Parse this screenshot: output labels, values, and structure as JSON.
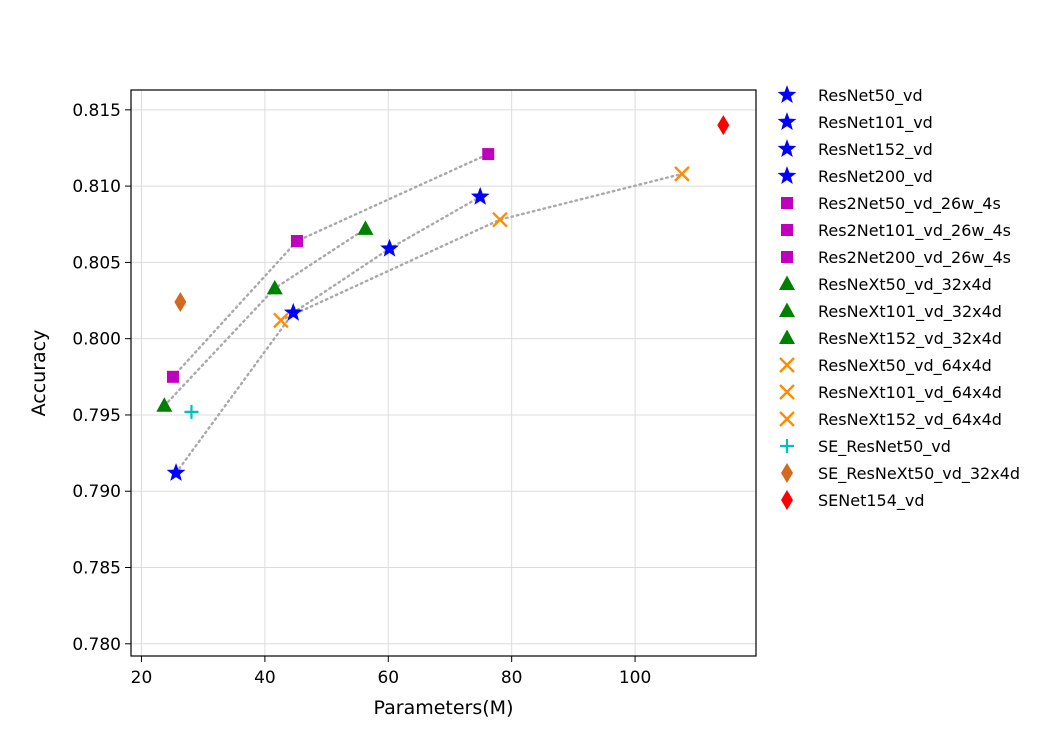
{
  "chart_data": {
    "type": "scatter",
    "title": "",
    "xlabel": "Parameters(M)",
    "ylabel": "Accuracy",
    "xlim": [
      18.3,
      119.6
    ],
    "ylim": [
      0.7792,
      0.8163
    ],
    "xticks": [
      20,
      40,
      60,
      80,
      100
    ],
    "yticks": [
      0.78,
      0.785,
      0.79,
      0.795,
      0.8,
      0.805,
      0.81,
      0.815
    ],
    "grid": true,
    "legend_position": "outside-right",
    "series": [
      {
        "name": "ResNet50_vd",
        "marker": "star",
        "color": "#0000ff",
        "x": [
          25.6
        ],
        "y": [
          0.7912
        ]
      },
      {
        "name": "ResNet101_vd",
        "marker": "star",
        "color": "#0000ff",
        "x": [
          44.6
        ],
        "y": [
          0.8017
        ]
      },
      {
        "name": "ResNet152_vd",
        "marker": "star",
        "color": "#0000ff",
        "x": [
          60.2
        ],
        "y": [
          0.8059
        ]
      },
      {
        "name": "ResNet200_vd",
        "marker": "star",
        "color": "#0000ff",
        "x": [
          74.9
        ],
        "y": [
          0.8093
        ]
      },
      {
        "name": "Res2Net50_vd_26w_4s",
        "marker": "square",
        "color": "#bf00bf",
        "x": [
          25.1
        ],
        "y": [
          0.7975
        ]
      },
      {
        "name": "Res2Net101_vd_26w_4s",
        "marker": "square",
        "color": "#bf00bf",
        "x": [
          45.2
        ],
        "y": [
          0.8064
        ]
      },
      {
        "name": "Res2Net200_vd_26w_4s",
        "marker": "square",
        "color": "#bf00bf",
        "x": [
          76.2
        ],
        "y": [
          0.8121
        ]
      },
      {
        "name": "ResNeXt50_vd_32x4d",
        "marker": "triangle",
        "color": "#008000",
        "x": [
          23.7
        ],
        "y": [
          0.7956
        ]
      },
      {
        "name": "ResNeXt101_vd_32x4d",
        "marker": "triangle",
        "color": "#008000",
        "x": [
          41.6
        ],
        "y": [
          0.8033
        ]
      },
      {
        "name": "ResNeXt152_vd_32x4d",
        "marker": "triangle",
        "color": "#008000",
        "x": [
          56.3
        ],
        "y": [
          0.8072
        ]
      },
      {
        "name": "ResNeXt50_vd_64x4d",
        "marker": "x",
        "color": "#ff8c00",
        "x": [
          42.6
        ],
        "y": [
          0.8012
        ]
      },
      {
        "name": "ResNeXt101_vd_64x4d",
        "marker": "x",
        "color": "#ff8c00",
        "x": [
          78.1
        ],
        "y": [
          0.8078
        ]
      },
      {
        "name": "ResNeXt152_vd_64x4d",
        "marker": "x",
        "color": "#ff8c00",
        "x": [
          107.6
        ],
        "y": [
          0.8108
        ]
      },
      {
        "name": "SE_ResNet50_vd",
        "marker": "plus",
        "color": "#00bfbf",
        "x": [
          28.1
        ],
        "y": [
          0.7952
        ]
      },
      {
        "name": "SE_ResNeXt50_vd_32x4d",
        "marker": "thin_diamond",
        "color": "#d2691e",
        "x": [
          26.3
        ],
        "y": [
          0.8024
        ]
      },
      {
        "name": "SENet154_vd",
        "marker": "thin_diamond",
        "color": "#ff0000",
        "x": [
          114.3
        ],
        "y": [
          0.814
        ]
      }
    ],
    "trend_lines": [
      {
        "color": "#a9a9a9",
        "style": "dotted",
        "x": [
          25.6,
          44.6,
          60.2,
          74.9
        ],
        "y": [
          0.7912,
          0.8017,
          0.8059,
          0.8093
        ]
      },
      {
        "color": "#a9a9a9",
        "style": "dotted",
        "x": [
          25.1,
          45.2,
          76.2
        ],
        "y": [
          0.7975,
          0.8064,
          0.8121
        ]
      },
      {
        "color": "#a9a9a9",
        "style": "dotted",
        "x": [
          23.7,
          41.6,
          56.3
        ],
        "y": [
          0.7956,
          0.8033,
          0.8072
        ]
      },
      {
        "color": "#a9a9a9",
        "style": "dotted",
        "x": [
          42.6,
          78.1,
          107.6
        ],
        "y": [
          0.8012,
          0.8078,
          0.8108
        ]
      }
    ]
  }
}
